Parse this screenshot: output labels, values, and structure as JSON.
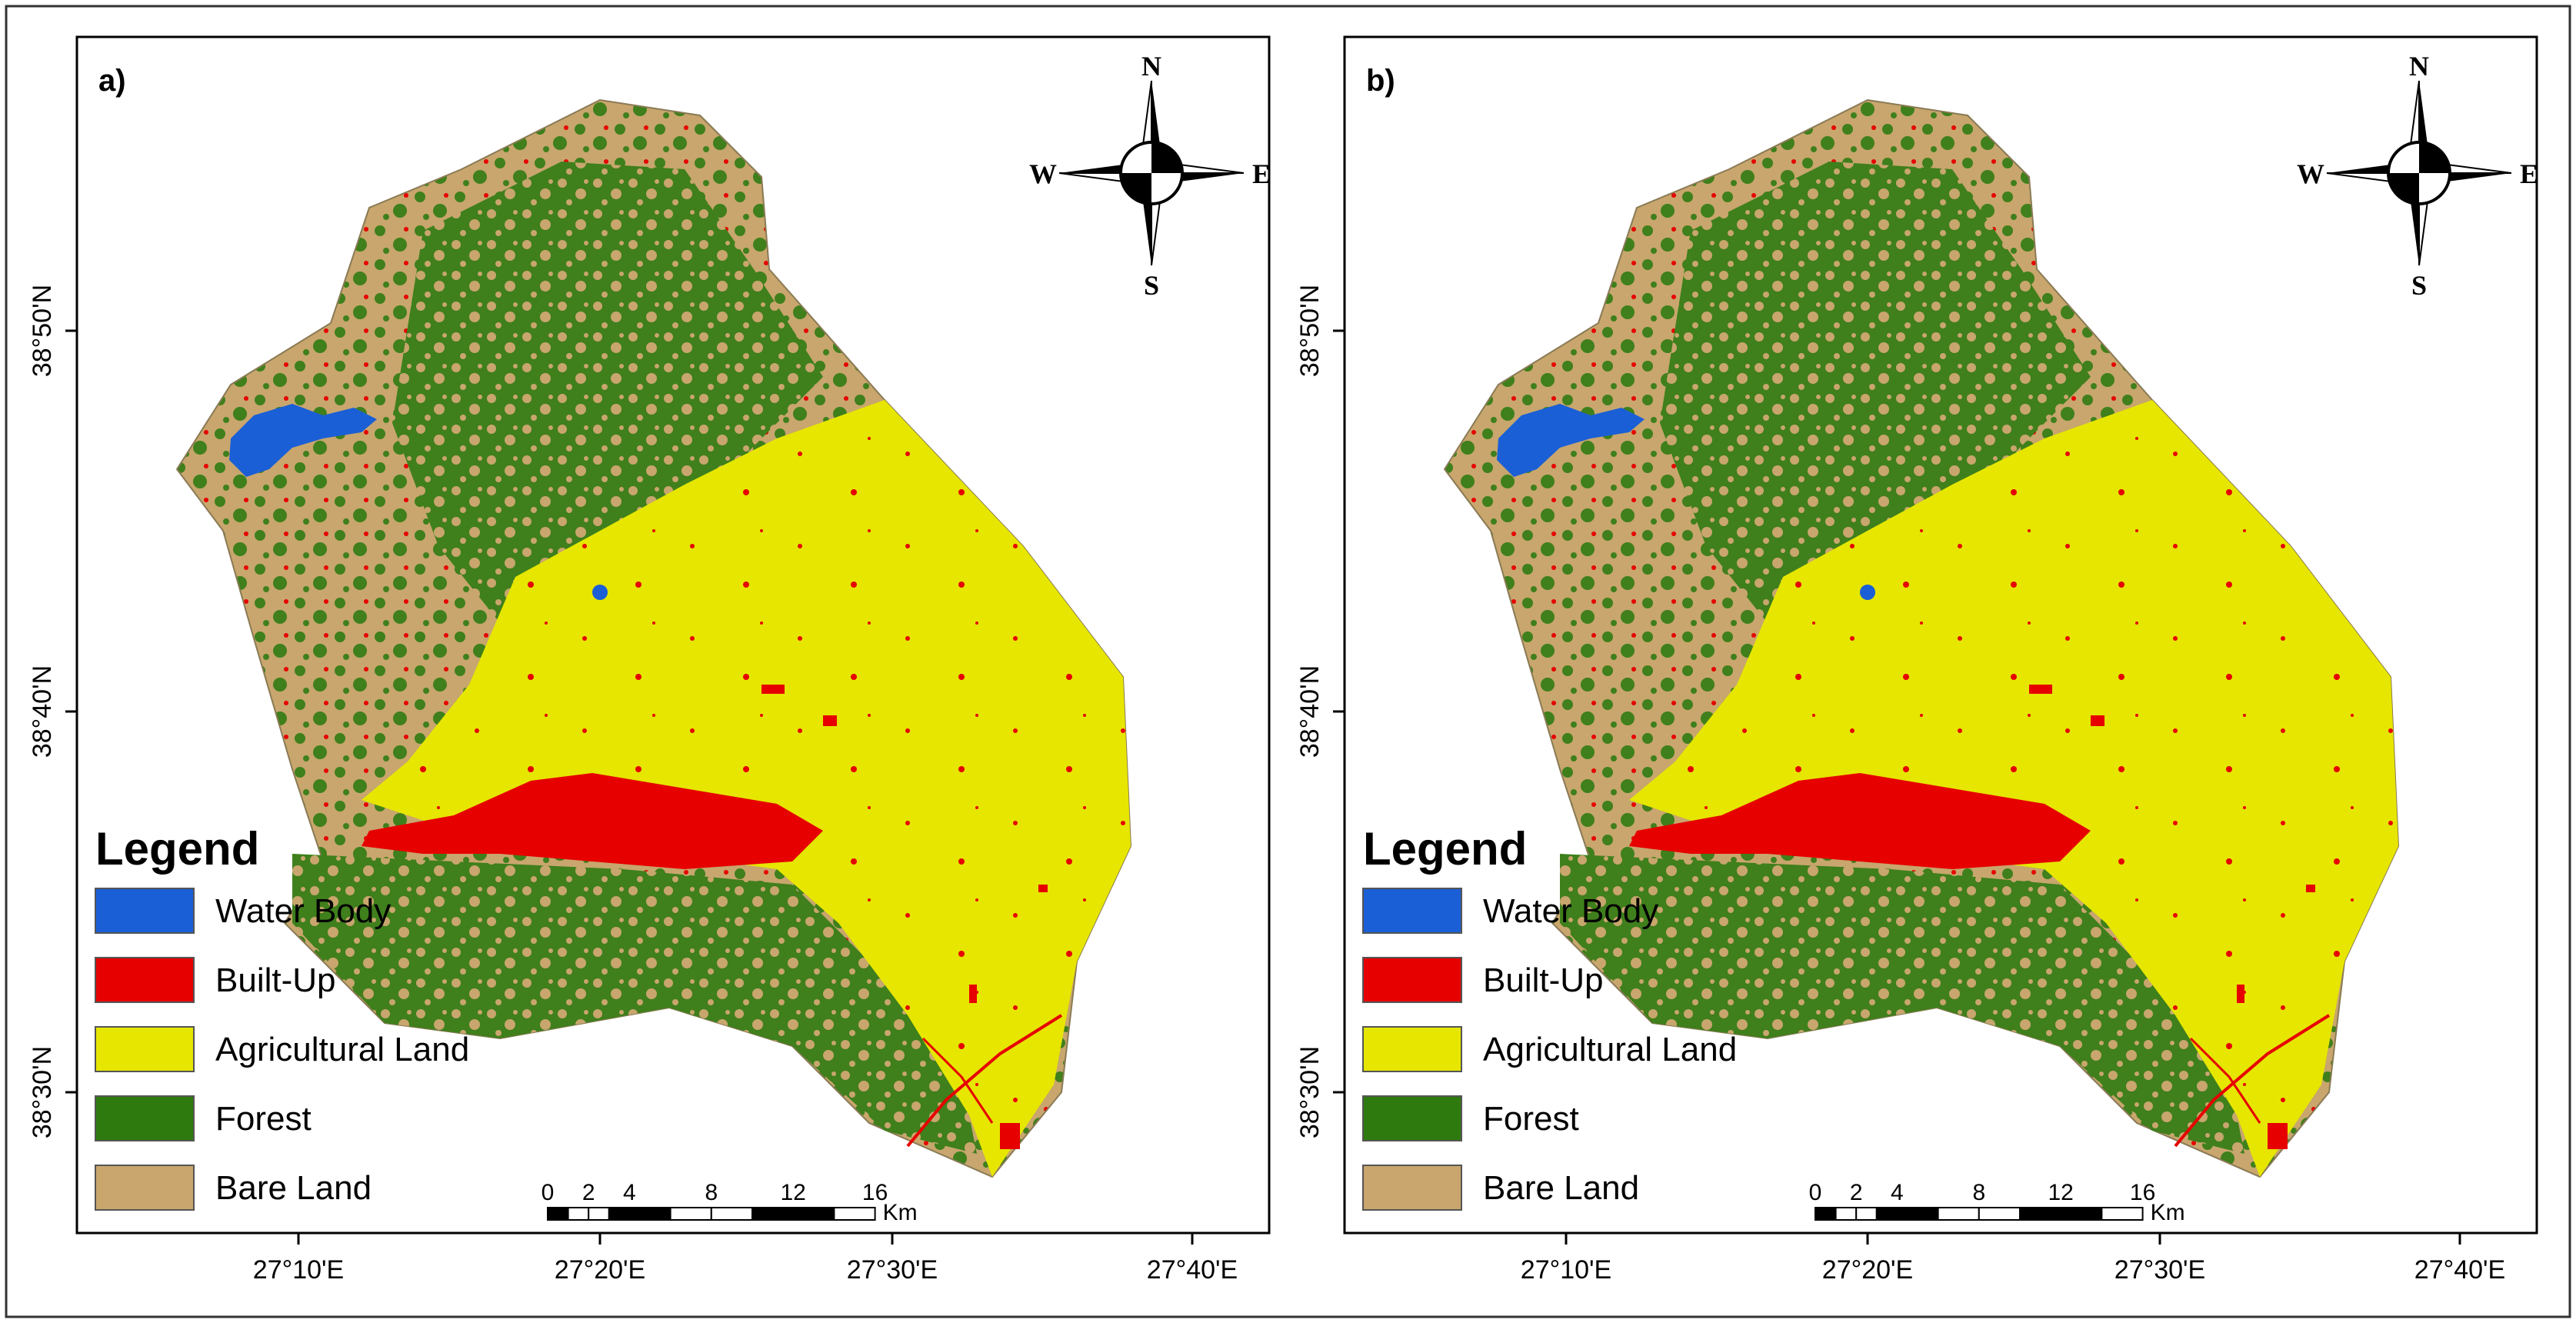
{
  "panels": [
    {
      "id": "a",
      "label": "a)"
    },
    {
      "id": "b",
      "label": "b)"
    }
  ],
  "legend": {
    "title": "Legend",
    "items": [
      {
        "label": "Water Body",
        "color": "#1a5fd6"
      },
      {
        "label": "Built-Up",
        "color": "#e60000"
      },
      {
        "label": "Agricultural Land",
        "color": "#e6e600"
      },
      {
        "label": "Forest",
        "color": "#2f7a0f"
      },
      {
        "label": "Bare Land",
        "color": "#c8a66d"
      }
    ]
  },
  "north_arrow": {
    "n": "N",
    "s": "S",
    "e": "E",
    "w": "W"
  },
  "scale_bar": {
    "ticks": [
      "0",
      "2",
      "4",
      "8",
      "12",
      "16"
    ],
    "unit": "Km"
  },
  "x_ticks": [
    "27°10'E",
    "27°20'E",
    "27°30'E",
    "27°40'E"
  ],
  "y_ticks": [
    "38°50'N",
    "38°40'N",
    "38°30'N"
  ]
}
